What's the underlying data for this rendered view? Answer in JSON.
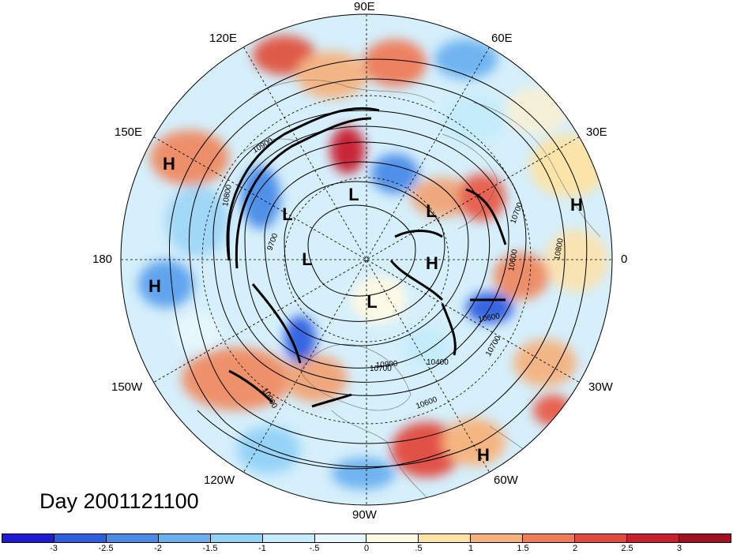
{
  "title": "Day 2001121100",
  "longitude_labels": {
    "top": "90E",
    "upper_left": "120E",
    "upper_right": "60E",
    "left_upper": "150E",
    "right_upper": "30E",
    "left": "180",
    "right": "0",
    "left_lower": "150W",
    "right_lower": "30W",
    "lower_left": "120W",
    "lower_right": "60W",
    "bottom": "90W"
  },
  "pressure_centers": [
    {
      "label": "H",
      "lon_desc": "150E high",
      "name": "high-150e"
    },
    {
      "label": "H",
      "lon_desc": "180 high",
      "name": "high-180"
    },
    {
      "label": "H",
      "lon_desc": "europe high",
      "name": "high-europe"
    },
    {
      "label": "H",
      "lon_desc": "greenland high",
      "name": "high-greenland"
    },
    {
      "label": "H",
      "lon_desc": "south america high",
      "name": "high-south-america"
    },
    {
      "label": "L",
      "lon_desc": "siberia low",
      "name": "low-siberia"
    },
    {
      "label": "L",
      "lon_desc": "east siberia low",
      "name": "low-east-siberia"
    },
    {
      "label": "L",
      "lon_desc": "arctic low",
      "name": "low-arctic"
    },
    {
      "label": "L",
      "lon_desc": "scandinavia low",
      "name": "low-scandinavia"
    },
    {
      "label": "L",
      "lon_desc": "hudson low",
      "name": "low-hudson"
    }
  ],
  "contour_labels": [
    "10900",
    "10800",
    "9700",
    "10700",
    "10600",
    "10600",
    "10700",
    "10800",
    "10900",
    "10400",
    "10600",
    "10900",
    "10700"
  ],
  "colorbar": {
    "ticks": [
      "-3",
      "-2.5",
      "-2",
      "-1.5",
      "-1",
      "-.5",
      "0",
      ".5",
      "1",
      "1.5",
      "2",
      "2.5",
      "3"
    ],
    "colors": [
      "#1f1ad6",
      "#2f5fe0",
      "#4a8be8",
      "#6ab0f0",
      "#92d2f7",
      "#c4ecfb",
      "#e6f8fd",
      "#fffae3",
      "#fde3a6",
      "#f7b27a",
      "#ee7c59",
      "#e24a3e",
      "#c91f2d",
      "#a0101f"
    ]
  }
}
